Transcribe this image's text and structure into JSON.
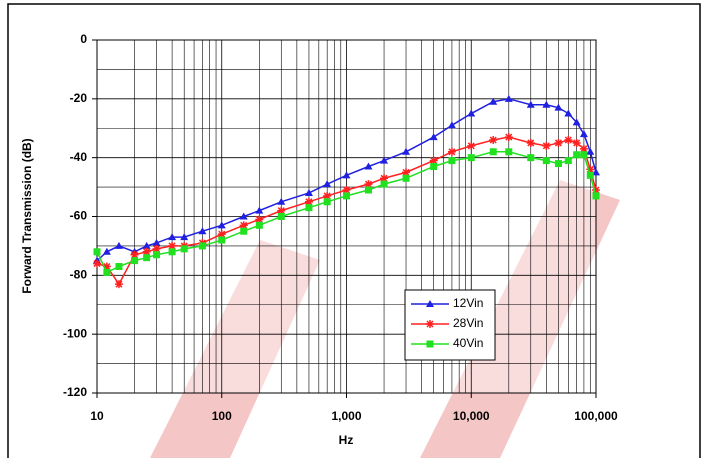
{
  "chart_data": {
    "type": "line",
    "x_label": "Hz",
    "y_label": "Forward Transmission (dB)",
    "x_log": true,
    "grid": true,
    "x_minor_grid": true,
    "y_minor_grid": true,
    "legend_position": "lower right",
    "x": [
      10,
      12,
      15,
      20,
      25,
      30,
      40,
      50,
      70,
      100,
      150,
      200,
      300,
      500,
      700,
      1000,
      1500,
      2000,
      3000,
      5000,
      7000,
      10000,
      15000,
      20000,
      30000,
      40000,
      50000,
      60000,
      70000,
      80000,
      90000,
      100000
    ],
    "series": [
      {
        "name": "12Vin",
        "color": "#2020e0",
        "marker": "triangle",
        "values": [
          -75,
          -72,
          -70,
          -72,
          -70,
          -69,
          -67,
          -67,
          -65,
          -63,
          -60,
          -58,
          -55,
          -52,
          -49,
          -46,
          -43,
          -41,
          -38,
          -33,
          -29,
          -25,
          -21,
          -20,
          -22,
          -22,
          -23,
          -25,
          -28,
          -32,
          -38,
          -45
        ]
      },
      {
        "name": "28Vin",
        "color": "#ff2020",
        "marker": "asterisk",
        "values": [
          -76,
          -77,
          -83,
          -73,
          -72,
          -71,
          -70,
          -70,
          -69,
          -66,
          -63,
          -61,
          -58,
          -55,
          -53,
          -51,
          -49,
          -47,
          -45,
          -41,
          -38,
          -36,
          -34,
          -33,
          -35,
          -36,
          -35,
          -34,
          -35,
          -37,
          -44,
          -51
        ]
      },
      {
        "name": "40Vin",
        "color": "#20e020",
        "marker": "square",
        "values": [
          -72,
          -79,
          -77,
          -75,
          -74,
          -73,
          -72,
          -71,
          -70,
          -68,
          -65,
          -63,
          -60,
          -57,
          -55,
          -53,
          -51,
          -49,
          -47,
          -43,
          -41,
          -40,
          -38,
          -38,
          -40,
          -41,
          -42,
          -41,
          -39,
          -39,
          -46,
          -53
        ]
      }
    ],
    "xlim": [
      10,
      100000
    ],
    "xticks": [
      10,
      100,
      {
        "value": 1000,
        "label": "1,000"
      },
      {
        "value": 10000,
        "label": "10,000"
      },
      {
        "value": 100000,
        "label": "100,000"
      }
    ],
    "ylim": [
      -120,
      0
    ],
    "yticks": [
      0,
      -20,
      -40,
      -60,
      -80,
      -100,
      -120
    ]
  }
}
